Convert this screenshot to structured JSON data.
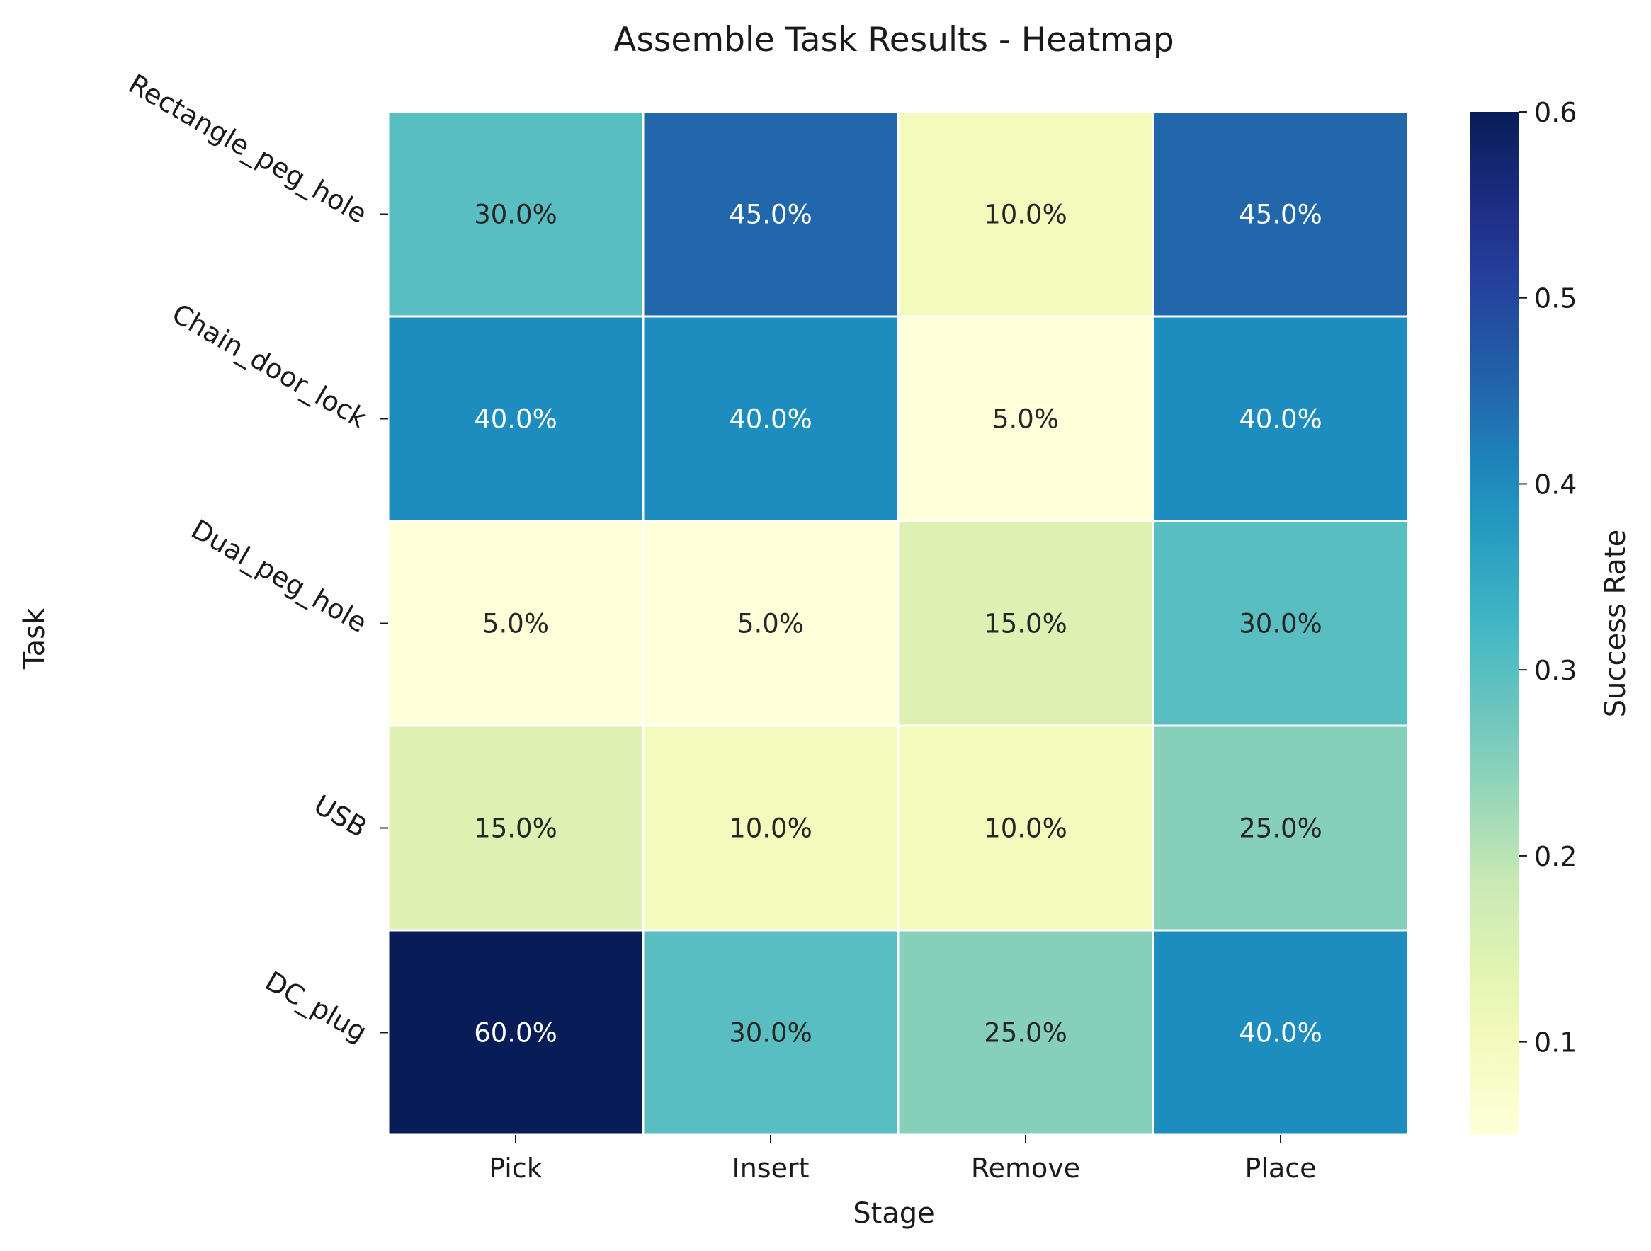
{
  "chart_data": {
    "type": "heatmap",
    "title": "Assemble Task Results - Heatmap",
    "xlabel": "Stage",
    "ylabel": "Task",
    "x_categories": [
      "Pick",
      "Insert",
      "Remove",
      "Place"
    ],
    "y_categories": [
      "Rectangle_peg_hole",
      "Chain_door_lock",
      "Dual_peg_hole",
      "USB",
      "DC_plug"
    ],
    "values": [
      [
        0.3,
        0.45,
        0.1,
        0.45
      ],
      [
        0.4,
        0.4,
        0.05,
        0.4
      ],
      [
        0.05,
        0.05,
        0.15,
        0.3
      ],
      [
        0.15,
        0.1,
        0.1,
        0.25
      ],
      [
        0.6,
        0.3,
        0.25,
        0.4
      ]
    ],
    "cell_labels": [
      [
        "30.0%",
        "45.0%",
        "10.0%",
        "45.0%"
      ],
      [
        "40.0%",
        "40.0%",
        "5.0%",
        "40.0%"
      ],
      [
        "5.0%",
        "5.0%",
        "15.0%",
        "30.0%"
      ],
      [
        "15.0%",
        "10.0%",
        "10.0%",
        "25.0%"
      ],
      [
        "60.0%",
        "30.0%",
        "25.0%",
        "40.0%"
      ]
    ],
    "colormap": "YlGnBu",
    "vmin": 0.05,
    "vmax": 0.6,
    "colorbar": {
      "label": "Success Rate",
      "ticks": [
        "0.1",
        "0.2",
        "0.3",
        "0.4",
        "0.5",
        "0.6"
      ]
    },
    "grid": false,
    "colors": {
      "cell_border": "#ffffff",
      "text_dark": "#262626",
      "text_light": "#ffffff"
    }
  }
}
